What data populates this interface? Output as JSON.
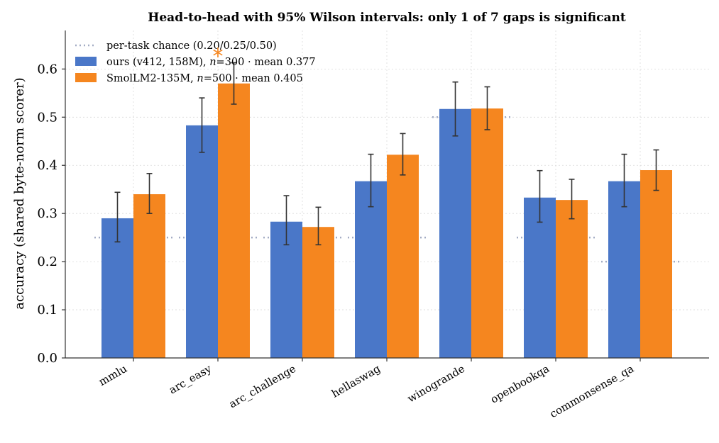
{
  "chart_data": {
    "type": "bar",
    "title": "Head-to-head with 95% Wilson intervals: only 1 of 7 gaps is significant",
    "xlabel": "",
    "ylabel": "accuracy (shared byte-norm scorer)",
    "ylim": [
      0,
      0.68
    ],
    "yticks": [
      0.0,
      0.1,
      0.2,
      0.3,
      0.4,
      0.5,
      0.6
    ],
    "ytick_labels": [
      "0.0",
      "0.1",
      "0.2",
      "0.3",
      "0.4",
      "0.5",
      "0.6"
    ],
    "categories": [
      "mmlu",
      "arc_easy",
      "arc_challenge",
      "hellaswag",
      "winogrande",
      "openbookqa",
      "commonsense_qa"
    ],
    "series": [
      {
        "name": "ours (v412, 158M), n=300  ·  mean 0.377",
        "legend_prefix": "ours (v412, 158M), ",
        "legend_n": "n",
        "legend_suffix": "=300  ·  mean 0.377",
        "color": "#4a77c8",
        "values": [
          0.29,
          0.483,
          0.283,
          0.367,
          0.517,
          0.333,
          0.367
        ],
        "ci_low": [
          0.241,
          0.427,
          0.235,
          0.314,
          0.461,
          0.282,
          0.314
        ],
        "ci_high": [
          0.344,
          0.54,
          0.337,
          0.423,
          0.573,
          0.389,
          0.423
        ]
      },
      {
        "name": "SmolLM2-135M, n=500  ·  mean 0.405",
        "legend_prefix": "SmolLM2-135M, ",
        "legend_n": "n",
        "legend_suffix": "=500  ·  mean 0.405",
        "color": "#f5861f",
        "values": [
          0.34,
          0.57,
          0.272,
          0.422,
          0.518,
          0.328,
          0.39
        ],
        "ci_low": [
          0.3,
          0.527,
          0.235,
          0.38,
          0.474,
          0.289,
          0.348
        ],
        "ci_high": [
          0.383,
          0.613,
          0.313,
          0.466,
          0.563,
          0.371,
          0.432
        ]
      }
    ],
    "chance": {
      "name": "per-task chance (0.20/0.25/0.50)",
      "color": "#a3acc4",
      "values": [
        0.25,
        0.25,
        0.25,
        0.25,
        0.5,
        0.25,
        0.2
      ]
    },
    "significance": {
      "marker": "*",
      "category": "arc_easy",
      "color": "#f5861f",
      "y": 0.635
    },
    "grid": true,
    "legend_position": "top-left"
  }
}
